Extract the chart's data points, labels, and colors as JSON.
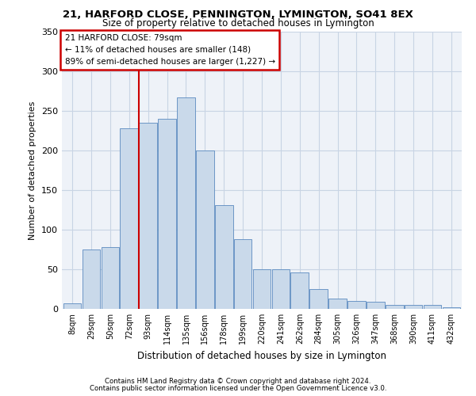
{
  "title1": "21, HARFORD CLOSE, PENNINGTON, LYMINGTON, SO41 8EX",
  "title2": "Size of property relative to detached houses in Lymington",
  "xlabel": "Distribution of detached houses by size in Lymington",
  "ylabel": "Number of detached properties",
  "bar_color": "#c9d9ea",
  "bar_edge_color": "#5a8abf",
  "categories": [
    "8sqm",
    "29sqm",
    "50sqm",
    "72sqm",
    "93sqm",
    "114sqm",
    "135sqm",
    "156sqm",
    "178sqm",
    "199sqm",
    "220sqm",
    "241sqm",
    "262sqm",
    "284sqm",
    "305sqm",
    "326sqm",
    "347sqm",
    "368sqm",
    "390sqm",
    "411sqm",
    "432sqm"
  ],
  "values": [
    7,
    75,
    78,
    228,
    235,
    240,
    267,
    200,
    131,
    88,
    50,
    50,
    46,
    25,
    13,
    10,
    9,
    5,
    5,
    5,
    2
  ],
  "ylim": [
    0,
    350
  ],
  "yticks": [
    0,
    50,
    100,
    150,
    200,
    250,
    300,
    350
  ],
  "annotation_title": "21 HARFORD CLOSE: 79sqm",
  "annotation_line1": "← 11% of detached houses are smaller (148)",
  "annotation_line2": "89% of semi-detached houses are larger (1,227) →",
  "annotation_box_color": "#ffffff",
  "annotation_border_color": "#cc0000",
  "vline_color": "#cc0000",
  "grid_color": "#c8d4e4",
  "background_color": "#eef2f8",
  "footer1": "Contains HM Land Registry data © Crown copyright and database right 2024.",
  "footer2": "Contains public sector information licensed under the Open Government Licence v3.0."
}
